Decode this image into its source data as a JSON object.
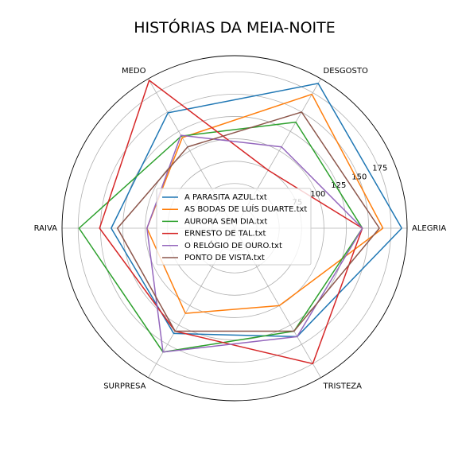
{
  "chart_data": {
    "type": "radar",
    "title": "HISTÓRIAS DA MEIA-NOITE",
    "axes": [
      "ALEGRIA",
      "DESGOSTO",
      "MEDO",
      "RAIVA",
      "SURPRESA",
      "TRISTEZA"
    ],
    "radial_ticks": [
      75,
      100,
      125,
      150,
      175
    ],
    "rlim": [
      0,
      193
    ],
    "grid": true,
    "legend_position": "center",
    "series": [
      {
        "name": "A PARASITA AZUL.txt",
        "color": "#1f77b4",
        "values": [
          187,
          187,
          149,
          138,
          136,
          140
        ]
      },
      {
        "name": "AS BODAS DE LUÍS DUARTE.txt",
        "color": "#ff7f0e",
        "values": [
          166,
          173,
          117,
          98,
          110,
          100
        ]
      },
      {
        "name": "AURORA SEM DIA.txt",
        "color": "#2ca02c",
        "values": [
          143,
          137,
          119,
          174,
          160,
          133
        ]
      },
      {
        "name": "ERNESTO DE TAL.txt",
        "color": "#d62728",
        "values": [
          143,
          75,
          191,
          151,
          133,
          175
        ]
      },
      {
        "name": "O RELÓGIO DE OURO.txt",
        "color": "#9467bd",
        "values": [
          143,
          105,
          120,
          98,
          160,
          140
        ]
      },
      {
        "name": "PONTO DE VISTA.txt",
        "color": "#8c564b",
        "values": [
          162,
          150,
          105,
          131,
          133,
          133
        ]
      }
    ]
  }
}
